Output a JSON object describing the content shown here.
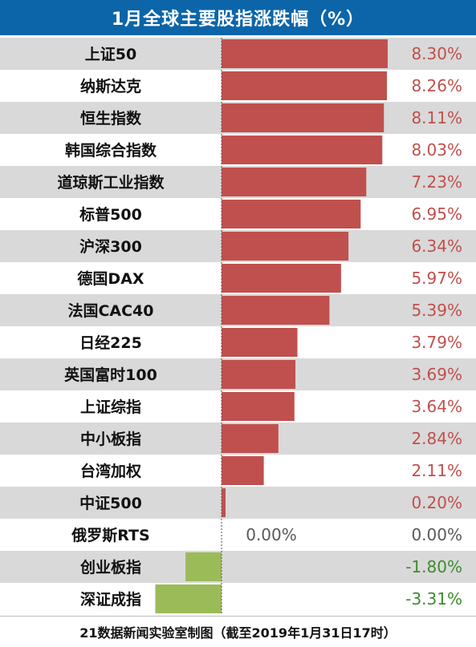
{
  "title": "1月全球主要股指涨跌幅（%）",
  "footer": "21数据新闻实验室制图（截至2019年1月31日17时）",
  "colors": {
    "title_bg": "#0b65a8",
    "positive_bar": "#c0504d",
    "negative_bar": "#9bbb59",
    "row_shade": "#d9d9d9",
    "zero_label": "#595959"
  },
  "chart_data": {
    "type": "bar",
    "orientation": "horizontal",
    "unit": "%",
    "xlim": [
      -4,
      8.5
    ],
    "categories": [
      "上证50",
      "纳斯达克",
      "恒生指数",
      "韩国综合指数",
      "道琼斯工业指数",
      "标普500",
      "沪深300",
      "德国DAX",
      "法国CAC40",
      "日经225",
      "英国富时100",
      "上证综指",
      "中小板指",
      "台湾加权",
      "中证500",
      "俄罗斯RTS",
      "创业板指",
      "深证成指"
    ],
    "values": [
      8.3,
      8.26,
      8.11,
      8.03,
      7.23,
      6.95,
      6.34,
      5.97,
      5.39,
      3.79,
      3.69,
      3.64,
      2.84,
      2.11,
      0.2,
      0.0,
      -1.8,
      -3.31
    ],
    "value_labels": [
      "8.30%",
      "8.26%",
      "8.11%",
      "8.03%",
      "7.23%",
      "6.95%",
      "6.34%",
      "5.97%",
      "5.39%",
      "3.79%",
      "3.69%",
      "3.64%",
      "2.84%",
      "2.11%",
      "0.20%",
      "0.00%",
      "-1.80%",
      "-3.31%"
    ],
    "zero_bar_label": "0.00%",
    "grid": false,
    "legend": "none"
  }
}
